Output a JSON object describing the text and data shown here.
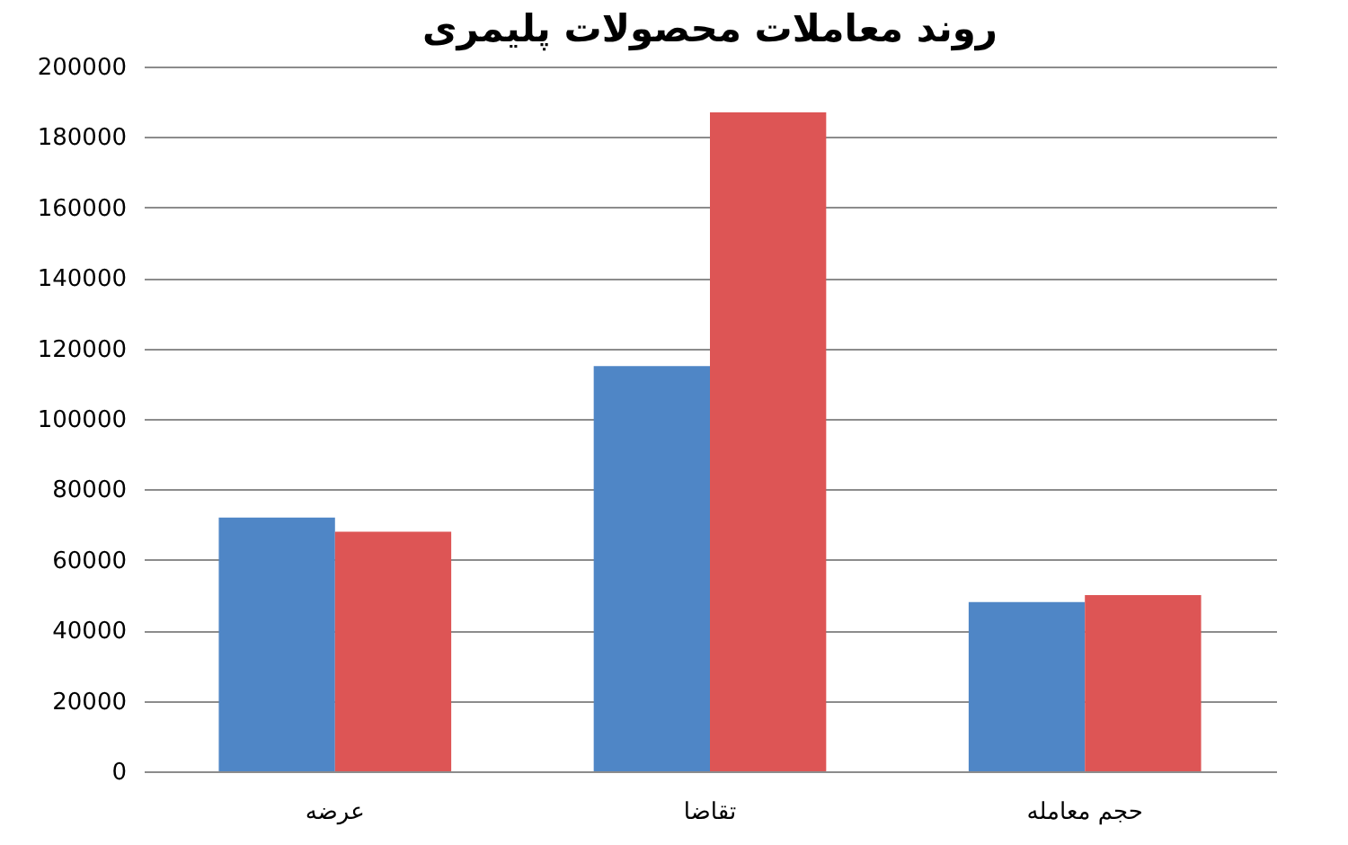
{
  "chart_data": {
    "type": "bar",
    "title": "روند معاملات محصولات پلیمری",
    "categories": [
      "عرضه",
      "تقاضا",
      "حجم معامله"
    ],
    "series": [
      {
        "color": "#4f86c6",
        "values": [
          72000,
          115000,
          48000
        ]
      },
      {
        "color": "#dd5555",
        "values": [
          68000,
          187000,
          50000
        ]
      }
    ],
    "ylim": [
      0,
      200000
    ],
    "yticks": [
      0,
      20000,
      40000,
      60000,
      80000,
      100000,
      120000,
      140000,
      160000,
      180000,
      200000
    ],
    "grid": "y"
  }
}
